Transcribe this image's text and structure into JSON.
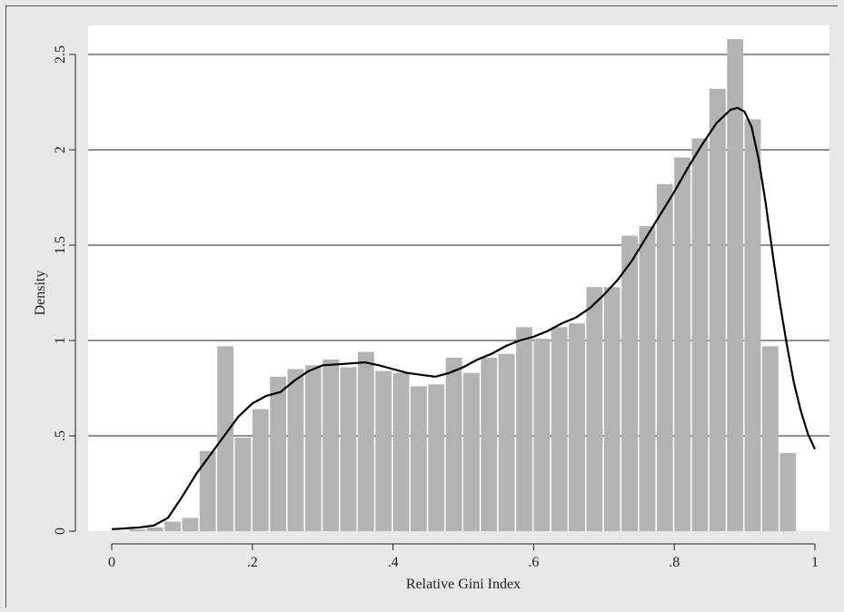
{
  "chart_data": {
    "type": "bar",
    "subtype": "histogram-with-kernel-density",
    "xlabel": "Relative Gini Index",
    "ylabel": "Density",
    "xlim": [
      0,
      1
    ],
    "ylim": [
      0,
      2.5
    ],
    "x_ticks": [
      {
        "value": 0,
        "label": "0"
      },
      {
        "value": 0.2,
        "label": ".2"
      },
      {
        "value": 0.4,
        "label": ".4"
      },
      {
        "value": 0.6,
        "label": ".6"
      },
      {
        "value": 0.8,
        "label": ".8"
      },
      {
        "value": 1,
        "label": "1"
      }
    ],
    "y_ticks": [
      {
        "value": 0,
        "label": "0"
      },
      {
        "value": 0.5,
        "label": ".5"
      },
      {
        "value": 1,
        "label": "1"
      },
      {
        "value": 1.5,
        "label": "1.5"
      },
      {
        "value": 2,
        "label": "2"
      },
      {
        "value": 2.5,
        "label": "2.5"
      }
    ],
    "grid": "horizontal",
    "bin_width": 0.025,
    "bins_start": 0,
    "histogram_values": [
      0.0,
      0.01,
      0.02,
      0.05,
      0.07,
      0.42,
      0.97,
      0.49,
      0.64,
      0.81,
      0.85,
      0.87,
      0.9,
      0.86,
      0.94,
      0.84,
      0.83,
      0.76,
      0.77,
      0.91,
      0.83,
      0.91,
      0.93,
      1.07,
      1.01,
      1.07,
      1.09,
      1.28,
      1.28,
      1.55,
      1.6,
      1.82,
      1.96,
      2.06,
      2.32,
      2.58,
      2.16,
      0.97,
      0.41
    ],
    "density_curve": {
      "x": [
        0.0,
        0.02,
        0.04,
        0.06,
        0.08,
        0.1,
        0.12,
        0.14,
        0.16,
        0.18,
        0.2,
        0.22,
        0.24,
        0.26,
        0.28,
        0.3,
        0.32,
        0.34,
        0.36,
        0.38,
        0.4,
        0.42,
        0.44,
        0.46,
        0.48,
        0.5,
        0.52,
        0.54,
        0.56,
        0.58,
        0.6,
        0.62,
        0.64,
        0.66,
        0.68,
        0.7,
        0.72,
        0.74,
        0.76,
        0.78,
        0.8,
        0.82,
        0.84,
        0.86,
        0.88,
        0.89,
        0.9,
        0.91,
        0.92,
        0.93,
        0.94,
        0.95,
        0.96,
        0.97,
        0.98,
        0.99,
        1.0
      ],
      "y": [
        0.01,
        0.015,
        0.02,
        0.03,
        0.07,
        0.18,
        0.3,
        0.4,
        0.5,
        0.6,
        0.67,
        0.71,
        0.73,
        0.79,
        0.84,
        0.87,
        0.875,
        0.88,
        0.885,
        0.87,
        0.85,
        0.83,
        0.82,
        0.81,
        0.83,
        0.86,
        0.9,
        0.93,
        0.97,
        1.0,
        1.02,
        1.05,
        1.09,
        1.12,
        1.17,
        1.24,
        1.32,
        1.42,
        1.54,
        1.66,
        1.78,
        1.91,
        2.03,
        2.14,
        2.21,
        2.22,
        2.2,
        2.12,
        1.95,
        1.72,
        1.45,
        1.2,
        0.98,
        0.78,
        0.63,
        0.51,
        0.43
      ]
    },
    "bar_color": "#b3b3b3",
    "curve_color": "#000000",
    "plot_background": "#ffffff",
    "outer_background": "#e8e8e8"
  }
}
